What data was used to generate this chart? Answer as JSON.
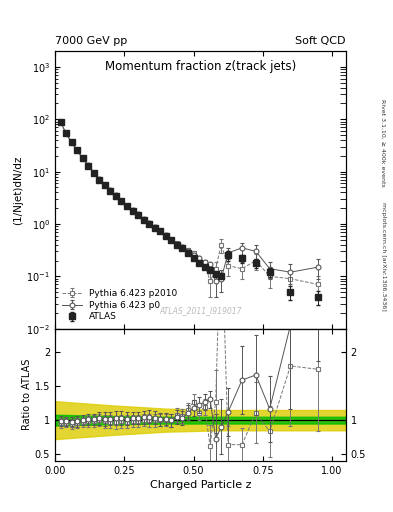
{
  "title": "Momentum fraction z(track jets)",
  "top_left_label": "7000 GeV pp",
  "top_right_label": "Soft QCD",
  "right_label_top": "Rivet 3.1.10, ≥ 400k events",
  "right_label_bot": "mcplots.cern.ch [arXiv:1306.3436]",
  "watermark": "ATLAS_2011_I919017",
  "ylabel_main": "(1/Njet)dN/dz",
  "ylabel_ratio": "Ratio to ATLAS",
  "xlabel": "Charged Particle z",
  "ylim_main_log": [
    -2,
    3.3
  ],
  "ylim_ratio": [
    0.4,
    2.35
  ],
  "xlim": [
    0.0,
    1.05
  ],
  "atlas_x": [
    0.02,
    0.04,
    0.06,
    0.08,
    0.1,
    0.12,
    0.14,
    0.16,
    0.18,
    0.2,
    0.22,
    0.24,
    0.26,
    0.28,
    0.3,
    0.32,
    0.34,
    0.36,
    0.38,
    0.4,
    0.42,
    0.44,
    0.46,
    0.48,
    0.5,
    0.52,
    0.54,
    0.56,
    0.58,
    0.6,
    0.625,
    0.675,
    0.725,
    0.775,
    0.85,
    0.95
  ],
  "atlas_y": [
    90,
    55,
    37,
    26,
    18,
    13,
    9.5,
    7.0,
    5.5,
    4.3,
    3.4,
    2.7,
    2.2,
    1.8,
    1.5,
    1.2,
    1.0,
    0.85,
    0.72,
    0.6,
    0.5,
    0.4,
    0.35,
    0.28,
    0.22,
    0.18,
    0.15,
    0.13,
    0.11,
    0.1,
    0.25,
    0.22,
    0.18,
    0.12,
    0.05,
    0.04
  ],
  "atlas_yerr": [
    5,
    3,
    2,
    1.5,
    1,
    0.8,
    0.6,
    0.5,
    0.4,
    0.3,
    0.25,
    0.2,
    0.15,
    0.12,
    0.1,
    0.08,
    0.07,
    0.06,
    0.05,
    0.04,
    0.035,
    0.03,
    0.025,
    0.02,
    0.015,
    0.012,
    0.01,
    0.009,
    0.008,
    0.007,
    0.05,
    0.04,
    0.035,
    0.025,
    0.015,
    0.012
  ],
  "p0_x": [
    0.02,
    0.04,
    0.06,
    0.08,
    0.1,
    0.12,
    0.14,
    0.16,
    0.18,
    0.2,
    0.22,
    0.24,
    0.26,
    0.28,
    0.3,
    0.32,
    0.34,
    0.36,
    0.38,
    0.4,
    0.42,
    0.44,
    0.46,
    0.48,
    0.5,
    0.52,
    0.54,
    0.56,
    0.58,
    0.6,
    0.625,
    0.675,
    0.725,
    0.775,
    0.85,
    0.95
  ],
  "p0_y": [
    89,
    54,
    36,
    25.5,
    18,
    13.2,
    9.6,
    7.2,
    5.6,
    4.4,
    3.5,
    2.8,
    2.25,
    1.85,
    1.55,
    1.25,
    1.05,
    0.88,
    0.73,
    0.61,
    0.5,
    0.42,
    0.36,
    0.31,
    0.26,
    0.22,
    0.19,
    0.17,
    0.08,
    0.09,
    0.28,
    0.35,
    0.3,
    0.14,
    0.12,
    0.15
  ],
  "p0_yerr": [
    4,
    2.5,
    1.8,
    1.3,
    0.9,
    0.7,
    0.55,
    0.4,
    0.35,
    0.28,
    0.22,
    0.18,
    0.14,
    0.11,
    0.09,
    0.075,
    0.065,
    0.055,
    0.045,
    0.038,
    0.032,
    0.028,
    0.024,
    0.022,
    0.018,
    0.015,
    0.013,
    0.011,
    0.04,
    0.04,
    0.07,
    0.09,
    0.09,
    0.05,
    0.05,
    0.06
  ],
  "p2010_x": [
    0.02,
    0.04,
    0.06,
    0.08,
    0.1,
    0.12,
    0.14,
    0.16,
    0.18,
    0.2,
    0.22,
    0.24,
    0.26,
    0.28,
    0.3,
    0.32,
    0.34,
    0.36,
    0.38,
    0.4,
    0.42,
    0.44,
    0.46,
    0.48,
    0.5,
    0.52,
    0.54,
    0.56,
    0.58,
    0.6,
    0.625,
    0.675,
    0.725,
    0.775,
    0.85,
    0.95
  ],
  "p2010_y": [
    86,
    53,
    35,
    25,
    17.5,
    12.8,
    9.4,
    7.0,
    5.4,
    4.2,
    3.3,
    2.65,
    2.15,
    1.78,
    1.48,
    1.2,
    1.0,
    0.85,
    0.72,
    0.6,
    0.5,
    0.43,
    0.37,
    0.32,
    0.28,
    0.2,
    0.18,
    0.08,
    0.14,
    0.4,
    0.16,
    0.14,
    0.2,
    0.1,
    0.09,
    0.07
  ],
  "p2010_yerr": [
    4,
    2.5,
    1.8,
    1.3,
    0.9,
    0.7,
    0.55,
    0.4,
    0.35,
    0.28,
    0.22,
    0.18,
    0.14,
    0.11,
    0.09,
    0.075,
    0.065,
    0.055,
    0.045,
    0.038,
    0.032,
    0.028,
    0.024,
    0.022,
    0.018,
    0.015,
    0.013,
    0.04,
    0.05,
    0.12,
    0.06,
    0.05,
    0.07,
    0.04,
    0.035,
    0.03
  ],
  "green_band_x": [
    0.0,
    0.2,
    0.4,
    0.6,
    0.8,
    1.05
  ],
  "green_band_y_low": [
    0.92,
    0.94,
    0.95,
    0.95,
    0.95,
    0.95
  ],
  "green_band_y_high": [
    1.08,
    1.06,
    1.05,
    1.05,
    1.05,
    1.05
  ],
  "yellow_band_x": [
    0.0,
    0.2,
    0.4,
    0.6,
    0.8,
    1.05
  ],
  "yellow_band_y_low": [
    0.72,
    0.78,
    0.83,
    0.85,
    0.85,
    0.85
  ],
  "yellow_band_y_high": [
    1.28,
    1.22,
    1.17,
    1.15,
    1.15,
    1.15
  ],
  "atlas_color": "#222222",
  "p0_color": "#555555",
  "p2010_color": "#777777",
  "green_color": "#00bb00",
  "yellow_color": "#ddcc00",
  "bg_color": "#ffffff"
}
